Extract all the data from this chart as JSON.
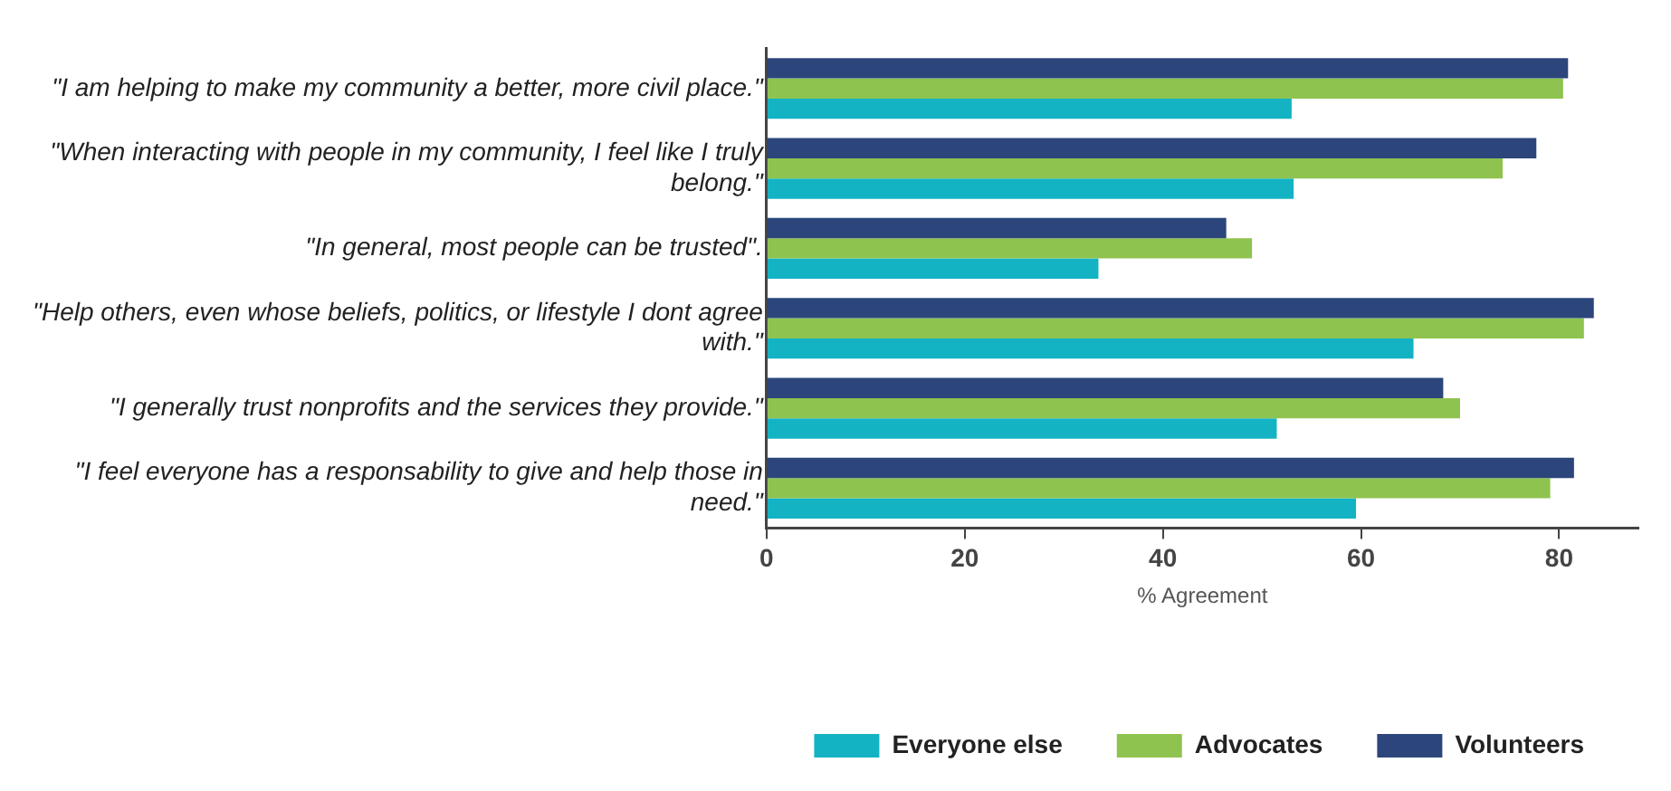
{
  "chart_data": {
    "type": "bar",
    "orientation": "horizontal",
    "xlabel": "% Agreement",
    "categories": [
      "\"I am helping to make my community a better, more civil place.\"",
      "\"When interacting with people in my community, I feel like I truly belong.\"",
      "\"In general, most people can be trusted\".",
      "\"Help others, even whose beliefs, politics, or lifestyle I dont agree with.\"",
      "\"I generally trust nonprofits and the services they provide.\"",
      "\"I feel everyone has a responsability to give and help those in need.\""
    ],
    "series": [
      {
        "name": "Everyone else",
        "color": "#14b3c4",
        "values": [
          53.0,
          53.2,
          33.5,
          65.3,
          51.5,
          59.5
        ]
      },
      {
        "name": "Advocates",
        "color": "#8fc34f",
        "values": [
          80.4,
          74.3,
          49.0,
          82.5,
          70.0,
          79.1
        ]
      },
      {
        "name": "Volunteers",
        "color": "#2c467c",
        "values": [
          80.9,
          77.7,
          46.4,
          83.5,
          68.3,
          81.5
        ]
      }
    ],
    "xlim": [
      0,
      88
    ],
    "xticks": [
      0,
      20,
      40,
      60,
      80
    ],
    "grid": false,
    "legend": "bottom"
  }
}
